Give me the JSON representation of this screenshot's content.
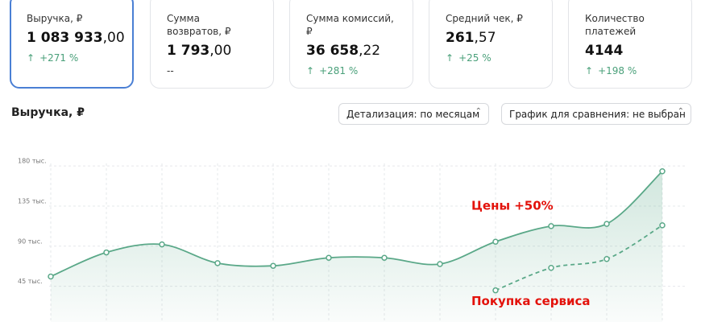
{
  "cards": [
    {
      "label": "Выручка, ₽",
      "value_main": "1 083 933",
      "value_decimal": ",00",
      "delta": "+271 %"
    },
    {
      "label": "Сумма возвратов, ₽",
      "value_main": "1 793",
      "value_decimal": ",00",
      "delta": "--"
    },
    {
      "label": "Сумма комиссий, ₽",
      "value_main": "36 658",
      "value_decimal": ",22",
      "delta": "+281 %"
    },
    {
      "label": "Средний чек, ₽",
      "value_main": "261",
      "value_decimal": ",57",
      "delta": "+25 %"
    },
    {
      "label": "Количество платежей",
      "value_main": "4144",
      "value_decimal": "",
      "delta": "+198 %"
    }
  ],
  "section_title": "Выручка, ₽",
  "controls": {
    "detail": "Детализация: по месяцам",
    "compare": "График для сравнения: не выбран"
  },
  "chart_data": {
    "type": "line",
    "categories": [
      null,
      null,
      null,
      null,
      null,
      null,
      null,
      null,
      null,
      null,
      null,
      null
    ],
    "series": [
      {
        "name": null,
        "color": "#5aa888",
        "dashed": false,
        "area": true,
        "values": [
          56000,
          83000,
          92000,
          71000,
          68000,
          77000,
          77000,
          70000,
          95000,
          112500,
          115000,
          174000
        ]
      },
      {
        "name": null,
        "color": "#5aa888",
        "dashed": true,
        "area": false,
        "values": [
          null,
          null,
          null,
          null,
          null,
          null,
          null,
          null,
          40500,
          65700,
          75600,
          113400
        ]
      }
    ],
    "ylim": [
      5000,
      190000
    ],
    "yticks": [
      {
        "value": 45000,
        "label": "45 тыс."
      },
      {
        "value": 90000,
        "label": "90 тыс."
      },
      {
        "value": 135000,
        "label": "135 тыс."
      },
      {
        "value": 180000,
        "label": "180 тыс."
      }
    ],
    "grid": true,
    "annotations": [
      {
        "text": "Цены +50%",
        "x": 8,
        "y": 135000
      },
      {
        "text": "Покупка сервиса",
        "x": 8,
        "y": 28000
      }
    ]
  }
}
